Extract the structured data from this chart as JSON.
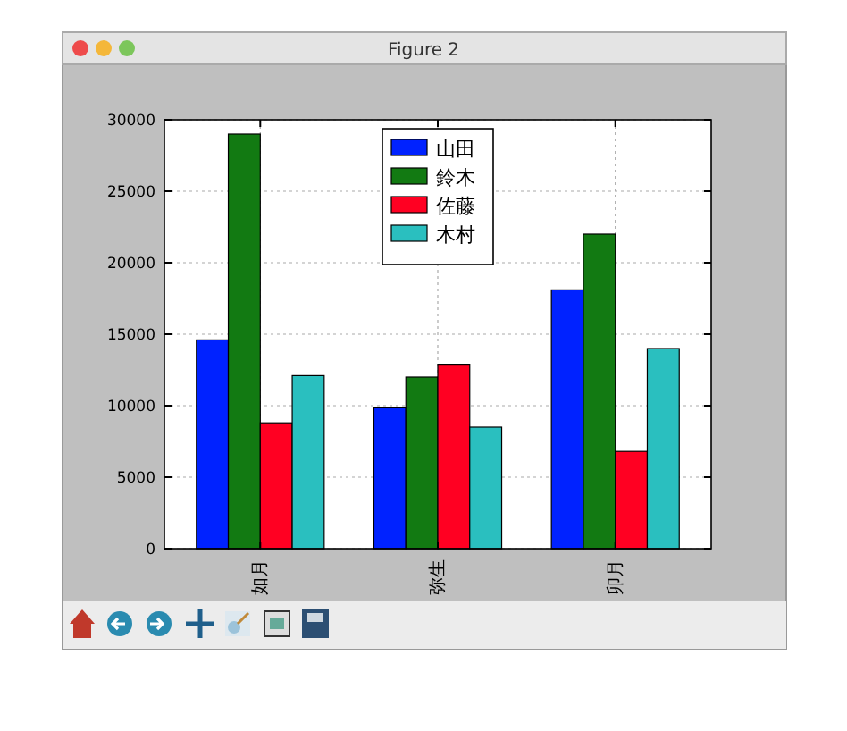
{
  "chart_data": {
    "type": "bar",
    "title": "Figure 2",
    "categories": [
      "如月",
      "弥生",
      "卯月"
    ],
    "series": [
      {
        "name": "山田",
        "color": "#0022ff",
        "values": [
          14600,
          9900,
          18100
        ]
      },
      {
        "name": "鈴木",
        "color": "#127a12",
        "values": [
          29000,
          12000,
          22000
        ]
      },
      {
        "name": "佐藤",
        "color": "#ff0022",
        "values": [
          8800,
          12900,
          6800
        ]
      },
      {
        "name": "木村",
        "color": "#2abfbf",
        "values": [
          12100,
          8500,
          14000
        ]
      }
    ],
    "ylim": [
      0,
      30000
    ],
    "yticks": [
      0,
      5000,
      10000,
      15000,
      20000,
      25000,
      30000
    ],
    "grid": true,
    "legend": "top"
  }
}
